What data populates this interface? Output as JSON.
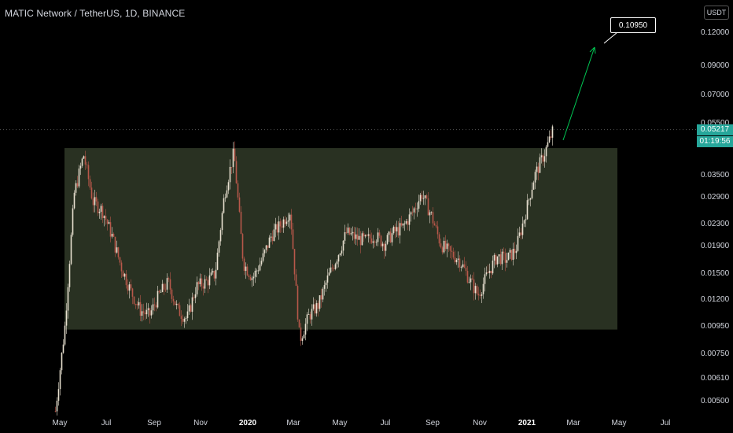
{
  "header": {
    "title": "MATIC Network / TetherUS, 1D, BINANCE"
  },
  "price_axis": {
    "currency_button": "USDT"
  },
  "last_price": {
    "value": "0.05217",
    "countdown": "01:19:56",
    "color": "#26a69a"
  },
  "target": {
    "label": "0.10950",
    "arrow_color": "#00c853"
  },
  "range_box": {
    "color": "#4a5a3e",
    "top_value": 0.0445,
    "bottom_value": 0.0093
  },
  "chart_data": {
    "type": "candlestick",
    "scale": "log",
    "title": "MATIC Network / TetherUS, 1D, BINANCE",
    "yticks": [
      "0.12000",
      "0.09000",
      "0.07000",
      "0.05500",
      "0.03500",
      "0.02900",
      "0.02300",
      "0.01900",
      "0.01500",
      "0.01200",
      "0.00950",
      "0.00750",
      "0.00610",
      "0.00500"
    ],
    "ytick_values": [
      0.12,
      0.09,
      0.07,
      0.055,
      0.035,
      0.029,
      0.023,
      0.019,
      0.015,
      0.012,
      0.0095,
      0.0075,
      0.0061,
      0.005
    ],
    "xticks": [
      "May",
      "Jul",
      "Sep",
      "Nov",
      "2020",
      "Mar",
      "May",
      "Jul",
      "Sep",
      "Nov",
      "2021",
      "Mar",
      "May",
      "Jul"
    ],
    "xtick_is_year": [
      false,
      false,
      false,
      false,
      true,
      false,
      false,
      false,
      false,
      false,
      true,
      false,
      false,
      false
    ],
    "price_path": [
      [
        "May",
        0.0046
      ],
      [
        "May",
        0.0095
      ],
      [
        "May",
        0.03
      ],
      [
        "May",
        0.042
      ],
      [
        "May",
        0.028
      ],
      [
        "Jul",
        0.026
      ],
      [
        "Jul",
        0.021
      ],
      [
        "Jul",
        0.016
      ],
      [
        "Jul",
        0.013
      ],
      [
        "Jul",
        0.011
      ],
      [
        "Sep",
        0.0105
      ],
      [
        "Sep",
        0.0125
      ],
      [
        "Sep",
        0.014
      ],
      [
        "Sep",
        0.011
      ],
      [
        "Sep",
        0.0102
      ],
      [
        "Nov",
        0.0135
      ],
      [
        "Nov",
        0.014
      ],
      [
        "Nov",
        0.015
      ],
      [
        "Nov",
        0.03
      ],
      [
        "Nov",
        0.043
      ],
      [
        "2020",
        0.0165
      ],
      [
        "2020",
        0.0145
      ],
      [
        "2020",
        0.017
      ],
      [
        "2020",
        0.021
      ],
      [
        "2020",
        0.023
      ],
      [
        "Mar",
        0.026
      ],
      [
        "Mar",
        0.0085
      ],
      [
        "Mar",
        0.0105
      ],
      [
        "Mar",
        0.0115
      ],
      [
        "May",
        0.0145
      ],
      [
        "May",
        0.0175
      ],
      [
        "May",
        0.0215
      ],
      [
        "May",
        0.0205
      ],
      [
        "May",
        0.02
      ],
      [
        "Jul",
        0.021
      ],
      [
        "Jul",
        0.0195
      ],
      [
        "Jul",
        0.0215
      ],
      [
        "Jul",
        0.0225
      ],
      [
        "Jul",
        0.0255
      ],
      [
        "Sep",
        0.03
      ],
      [
        "Sep",
        0.025
      ],
      [
        "Sep",
        0.0195
      ],
      [
        "Sep",
        0.018
      ],
      [
        "Sep",
        0.017
      ],
      [
        "Nov",
        0.0145
      ],
      [
        "Nov",
        0.0125
      ],
      [
        "Nov",
        0.015
      ],
      [
        "Nov",
        0.0175
      ],
      [
        "Nov",
        0.017
      ],
      [
        "2021",
        0.0185
      ],
      [
        "2021",
        0.025
      ],
      [
        "2021",
        0.035
      ],
      [
        "2021",
        0.042
      ],
      [
        "2021",
        0.0521
      ]
    ]
  }
}
